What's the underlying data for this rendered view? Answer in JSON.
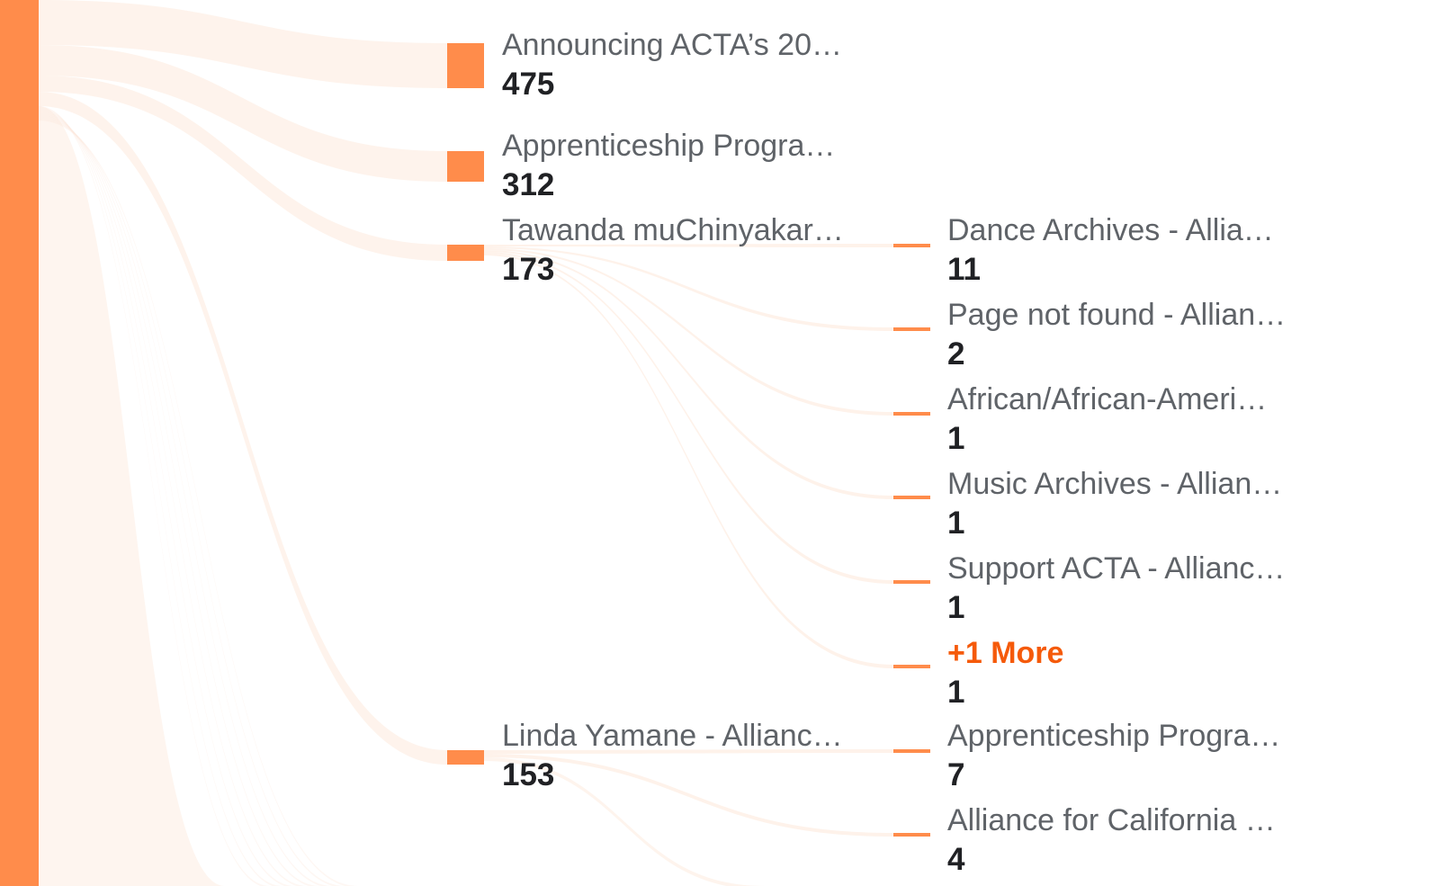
{
  "colors": {
    "accent": "#ff8c4b",
    "link_more": "#f55a0a",
    "flow": "#fde9dc"
  },
  "level1": [
    {
      "label": "Announcing ACTA’s 20…",
      "value": "475"
    },
    {
      "label": "Apprenticeship Progra…",
      "value": "312"
    },
    {
      "label": "Tawanda muChinyakar…",
      "value": "173"
    },
    {
      "label": "Linda Yamane - Allianc…",
      "value": "153"
    }
  ],
  "level2": [
    {
      "label": "Dance Archives - Allia…",
      "value": "11"
    },
    {
      "label": "Page not found - Allian…",
      "value": "2"
    },
    {
      "label": "African/African-Ameri…",
      "value": "1"
    },
    {
      "label": "Music Archives - Allian…",
      "value": "1"
    },
    {
      "label": "Support ACTA - Allianc…",
      "value": "1"
    },
    {
      "label": "+1 More",
      "value": "1"
    },
    {
      "label": "Apprenticeship Progra…",
      "value": "7"
    },
    {
      "label": "Alliance for California …",
      "value": "4"
    }
  ]
}
